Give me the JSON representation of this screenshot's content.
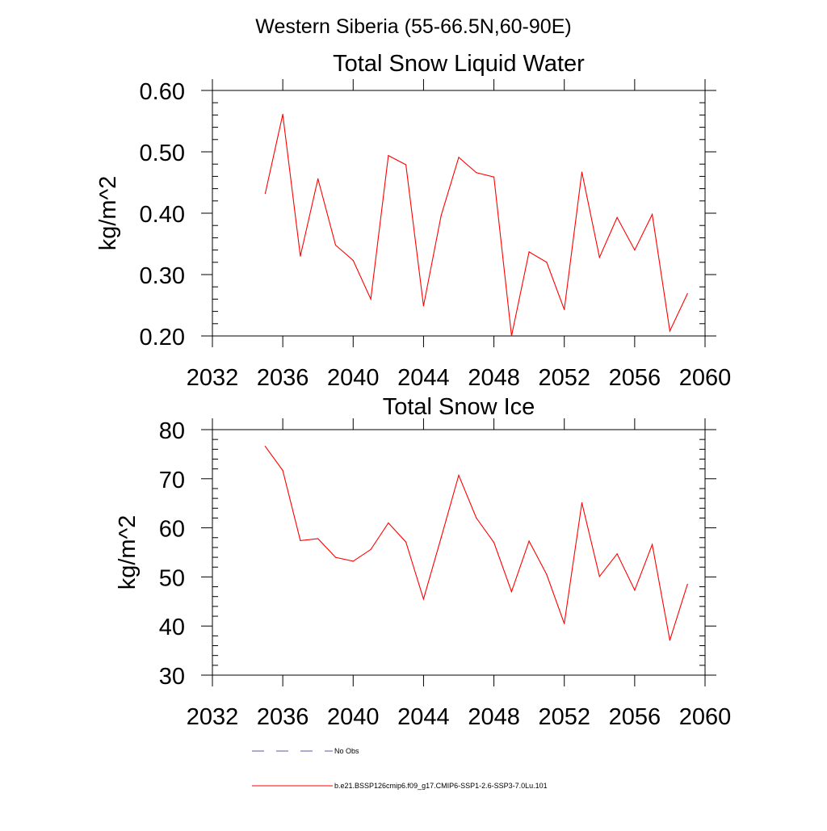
{
  "figure_title": "Western Siberia (55-66.5N,60-90E)",
  "legend": {
    "items": [
      {
        "label": "No Obs",
        "color": "#5a5aa0",
        "dash": true
      },
      {
        "label": "b.e21.BSSP126cmip6.f09_g17.CMIP6-SSP1-2.6-SSP3-7.0Lu.101",
        "color": "#ff0000",
        "dash": false
      }
    ]
  },
  "chart_data": [
    {
      "type": "line",
      "title": "Total Snow Liquid Water",
      "xlabel": "",
      "ylabel": "kg/m^2",
      "xlim": [
        2032,
        2060
      ],
      "ylim": [
        0.2,
        0.6
      ],
      "xticks": [
        2032,
        2036,
        2040,
        2044,
        2048,
        2052,
        2056,
        2060
      ],
      "xtick_labels": [
        "2032",
        "2036",
        "2040",
        "2044",
        "2048",
        "2052",
        "2056",
        "2060"
      ],
      "yticks": [
        0.2,
        0.3,
        0.4,
        0.5,
        0.6
      ],
      "ytick_labels": [
        "0.20",
        "0.30",
        "0.40",
        "0.50",
        "0.60"
      ],
      "grid": false,
      "series": [
        {
          "name": "b.e21.BSSP126cmip6.f09_g17.CMIP6-SSP1-2.6-SSP3-7.0Lu.101",
          "color": "#ff0000",
          "x": [
            2035,
            2036,
            2037,
            2038,
            2039,
            2040,
            2041,
            2042,
            2043,
            2044,
            2045,
            2046,
            2047,
            2048,
            2049,
            2050,
            2051,
            2052,
            2053,
            2054,
            2055,
            2056,
            2057,
            2058,
            2059
          ],
          "values": [
            0.432,
            0.561,
            0.33,
            0.456,
            0.348,
            0.323,
            0.26,
            0.494,
            0.479,
            0.249,
            0.396,
            0.491,
            0.466,
            0.459,
            0.2,
            0.337,
            0.32,
            0.243,
            0.467,
            0.328,
            0.393,
            0.34,
            0.398,
            0.208,
            0.269
          ]
        }
      ]
    },
    {
      "type": "line",
      "title": "Total Snow Ice",
      "xlabel": "",
      "ylabel": "kg/m^2",
      "xlim": [
        2032,
        2060
      ],
      "ylim": [
        30,
        80
      ],
      "xticks": [
        2032,
        2036,
        2040,
        2044,
        2048,
        2052,
        2056,
        2060
      ],
      "xtick_labels": [
        "2032",
        "2036",
        "2040",
        "2044",
        "2048",
        "2052",
        "2056",
        "2060"
      ],
      "yticks": [
        30,
        40,
        50,
        60,
        70,
        80
      ],
      "ytick_labels": [
        "30",
        "40",
        "50",
        "60",
        "70",
        "80"
      ],
      "grid": false,
      "series": [
        {
          "name": "b.e21.BSSP126cmip6.f09_g17.CMIP6-SSP1-2.6-SSP3-7.0Lu.101",
          "color": "#ff0000",
          "x": [
            2035,
            2036,
            2037,
            2038,
            2039,
            2040,
            2041,
            2042,
            2043,
            2044,
            2045,
            2046,
            2047,
            2048,
            2049,
            2050,
            2051,
            2052,
            2053,
            2054,
            2055,
            2056,
            2057,
            2058,
            2059
          ],
          "values": [
            76.6,
            71.7,
            57.4,
            57.8,
            54.0,
            53.2,
            55.6,
            61.0,
            57.1,
            45.5,
            58.0,
            70.7,
            62.0,
            57.0,
            47.0,
            57.3,
            50.5,
            40.5,
            65.1,
            50.1,
            54.7,
            47.3,
            56.6,
            37.1,
            48.5
          ]
        }
      ]
    }
  ]
}
